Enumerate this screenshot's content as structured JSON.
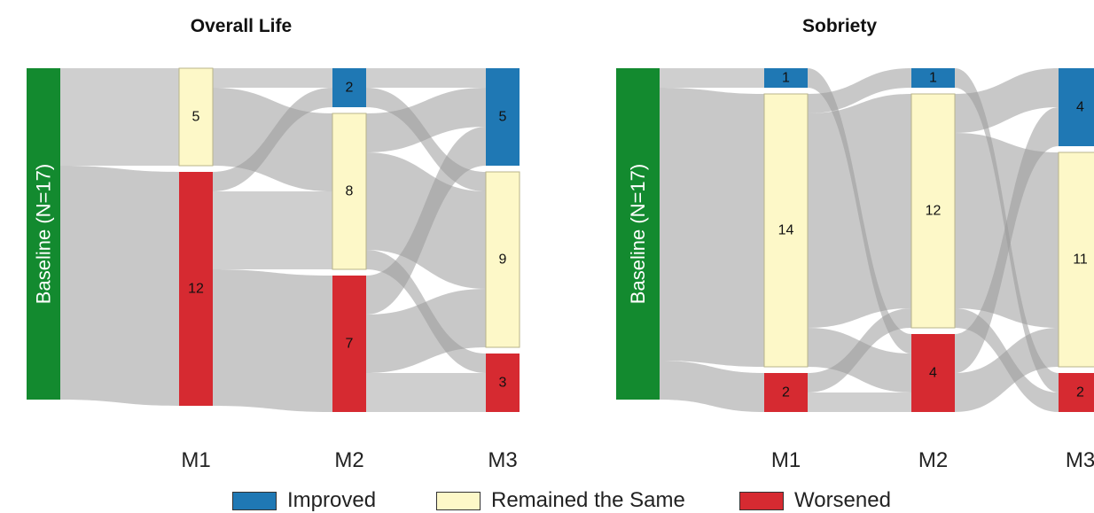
{
  "colors": {
    "Improved": "#1f78b4",
    "Remained the Same": "#fdf8c8",
    "Worsened": "#d62a31",
    "baseline": "#138a2f"
  },
  "legend": [
    {
      "label": "Improved",
      "color": "#1f78b4"
    },
    {
      "label": "Remained the Same",
      "color": "#fdf8c8"
    },
    {
      "label": "Worsened",
      "color": "#d62a31"
    }
  ],
  "chart_data": [
    {
      "type": "sankey",
      "title": "Overall Life",
      "baseline_label": "Baseline (N=17)",
      "stages": [
        "M1",
        "M2",
        "M3"
      ],
      "categories": [
        "Improved",
        "Remained the Same",
        "Worsened"
      ],
      "nodes": {
        "M1": {
          "Improved": 0,
          "Remained the Same": 5,
          "Worsened": 12
        },
        "M2": {
          "Improved": 2,
          "Remained the Same": 8,
          "Worsened": 7
        },
        "M3": {
          "Improved": 5,
          "Remained the Same": 9,
          "Worsened": 3
        }
      },
      "flows": [
        [
          "Baseline",
          "M1:Remained the Same",
          5
        ],
        [
          "Baseline",
          "M1:Worsened",
          12
        ],
        [
          "M1:Remained the Same",
          "M2:Improved",
          1
        ],
        [
          "M1:Remained the Same",
          "M2:Remained the Same",
          4
        ],
        [
          "M1:Worsened",
          "M2:Improved",
          1
        ],
        [
          "M1:Worsened",
          "M2:Remained the Same",
          4
        ],
        [
          "M1:Worsened",
          "M2:Worsened",
          7
        ],
        [
          "M2:Improved",
          "M3:Improved",
          1
        ],
        [
          "M2:Improved",
          "M3:Remained the Same",
          1
        ],
        [
          "M2:Remained the Same",
          "M3:Improved",
          2
        ],
        [
          "M2:Remained the Same",
          "M3:Remained the Same",
          5
        ],
        [
          "M2:Remained the Same",
          "M3:Worsened",
          1
        ],
        [
          "M2:Worsened",
          "M3:Improved",
          2
        ],
        [
          "M2:Worsened",
          "M3:Remained the Same",
          3
        ],
        [
          "M2:Worsened",
          "M3:Worsened",
          2
        ]
      ]
    },
    {
      "type": "sankey",
      "title": "Sobriety",
      "baseline_label": "Baseline (N=17)",
      "stages": [
        "M1",
        "M2",
        "M3"
      ],
      "categories": [
        "Improved",
        "Remained the Same",
        "Worsened"
      ],
      "nodes": {
        "M1": {
          "Improved": 1,
          "Remained the Same": 14,
          "Worsened": 2
        },
        "M2": {
          "Improved": 1,
          "Remained the Same": 12,
          "Worsened": 4
        },
        "M3": {
          "Improved": 4,
          "Remained the Same": 11,
          "Worsened": 2
        }
      },
      "flows": [
        [
          "Baseline",
          "M1:Improved",
          1
        ],
        [
          "Baseline",
          "M1:Remained the Same",
          14
        ],
        [
          "Baseline",
          "M1:Worsened",
          2
        ],
        [
          "M1:Improved",
          "M2:Worsened",
          1
        ],
        [
          "M1:Remained the Same",
          "M2:Improved",
          1
        ],
        [
          "M1:Remained the Same",
          "M2:Remained the Same",
          11
        ],
        [
          "M1:Remained the Same",
          "M2:Worsened",
          2
        ],
        [
          "M1:Worsened",
          "M2:Remained the Same",
          1
        ],
        [
          "M1:Worsened",
          "M2:Worsened",
          1
        ],
        [
          "M2:Improved",
          "M3:Worsened",
          1
        ],
        [
          "M2:Remained the Same",
          "M3:Improved",
          2
        ],
        [
          "M2:Remained the Same",
          "M3:Remained the Same",
          9
        ],
        [
          "M2:Remained the Same",
          "M3:Worsened",
          1
        ],
        [
          "M2:Worsened",
          "M3:Improved",
          2
        ],
        [
          "M2:Worsened",
          "M3:Remained the Same",
          2
        ]
      ]
    }
  ]
}
